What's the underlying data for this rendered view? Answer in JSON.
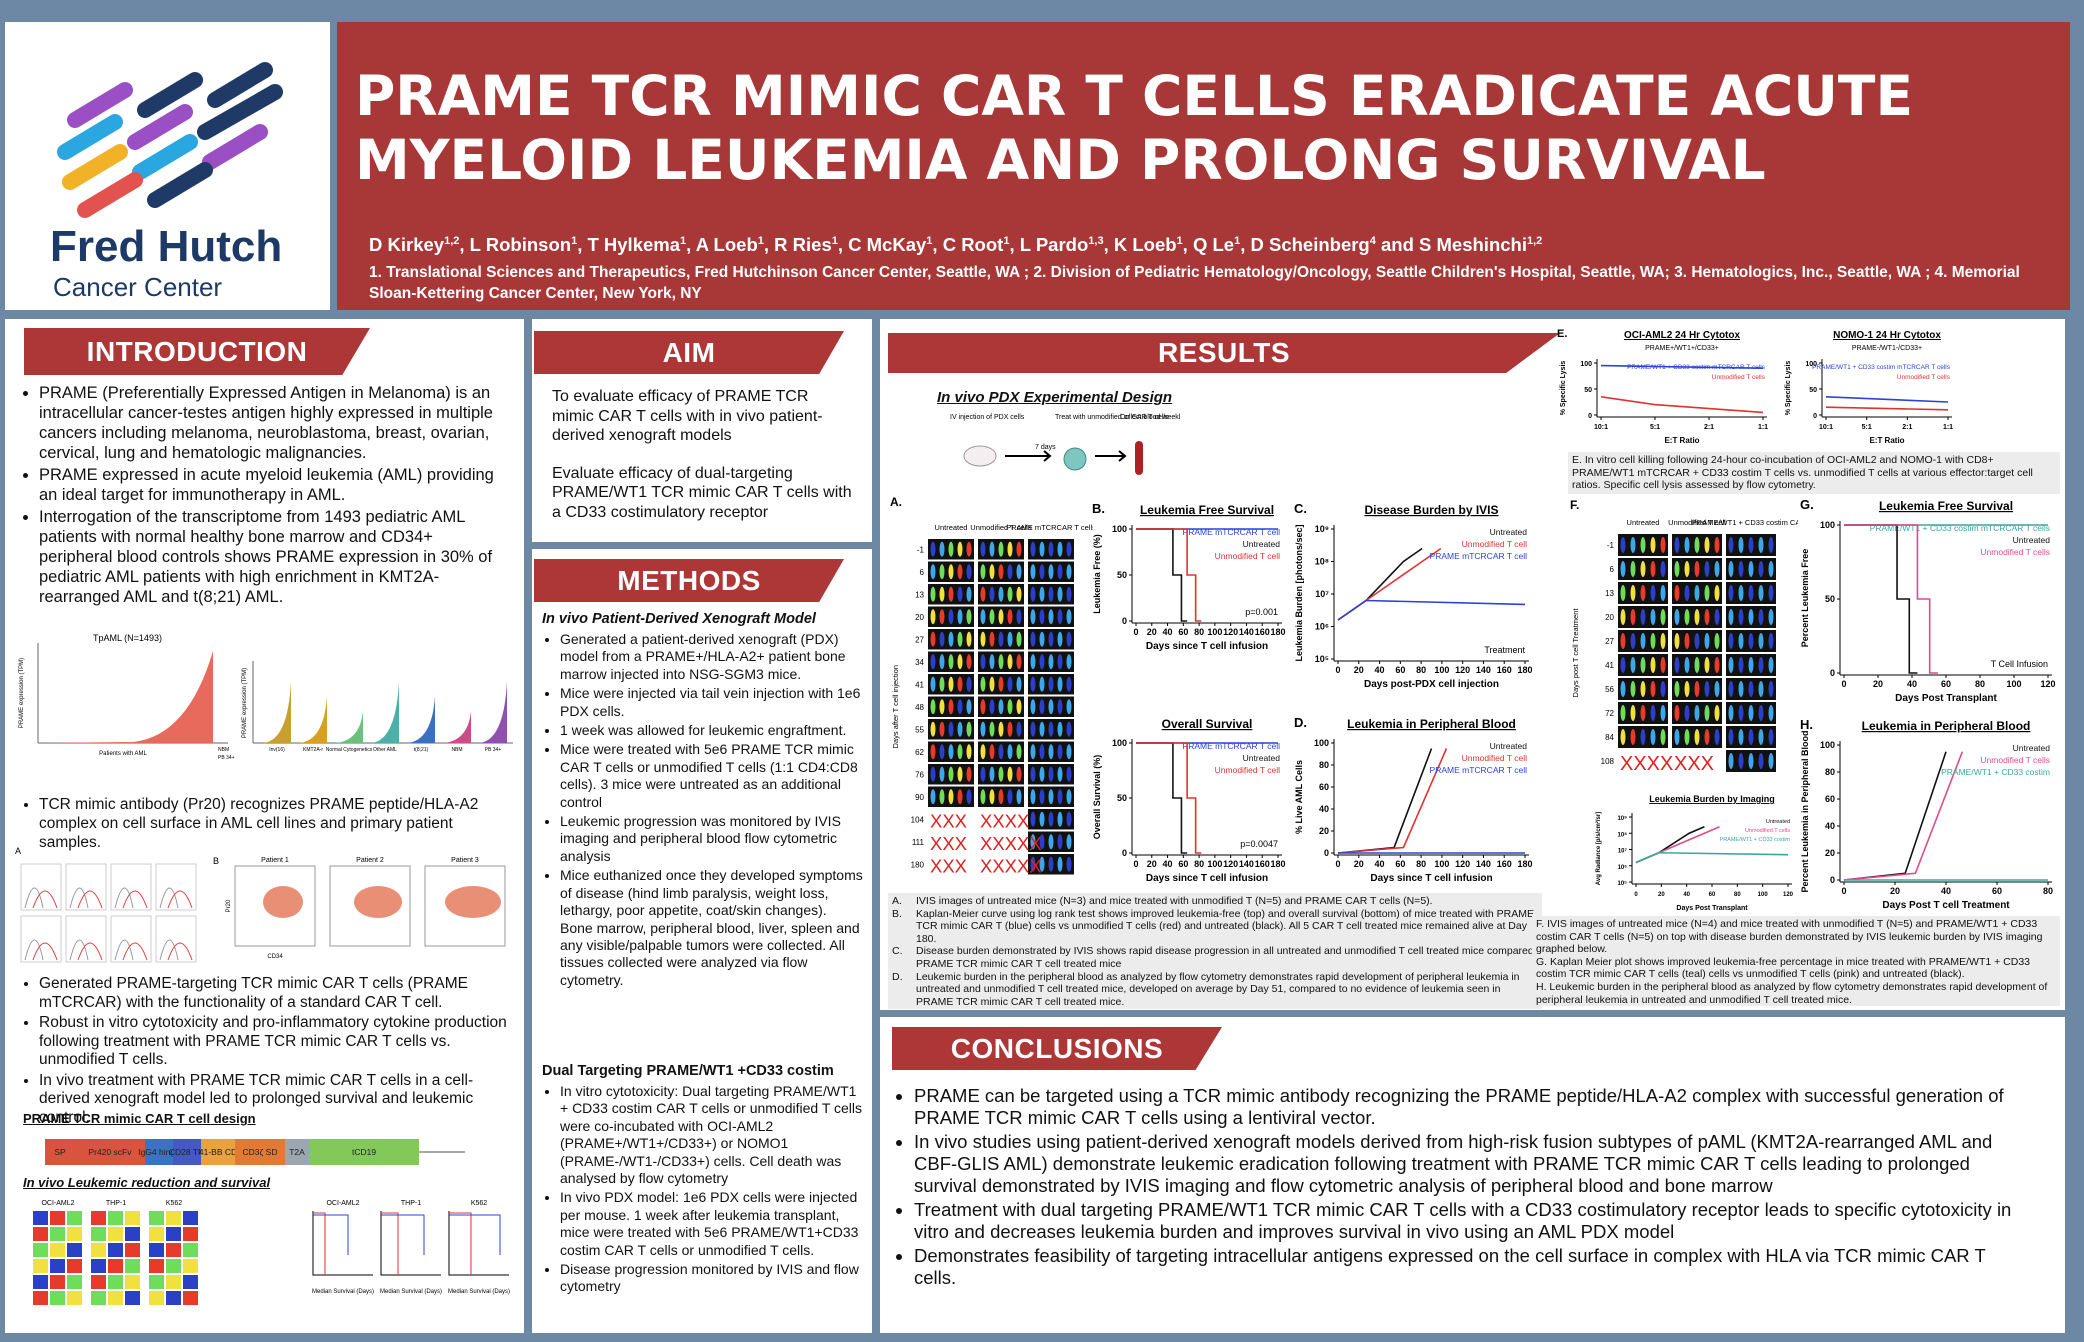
{
  "header": {
    "title": "PRAME TCR MIMIC CAR T CELLS ERADICATE ACUTE MYELOID LEUKEMIA AND PROLONG SURVIVAL",
    "authors": [
      {
        "name": "D Kirkey",
        "aff": "1,2"
      },
      {
        "name": "L Robinson",
        "aff": "1"
      },
      {
        "name": "T Hylkema",
        "aff": "1"
      },
      {
        "name": "A Loeb",
        "aff": "1"
      },
      {
        "name": "R Ries",
        "aff": "1"
      },
      {
        "name": "C McKay",
        "aff": "1"
      },
      {
        "name": "C Root",
        "aff": "1"
      },
      {
        "name": "L Pardo",
        "aff": "1,3"
      },
      {
        "name": "K Loeb",
        "aff": "1"
      },
      {
        "name": "Q Le",
        "aff": "1"
      },
      {
        "name": "D Scheinberg",
        "aff": "4"
      },
      {
        "name": "S Meshinchi",
        "aff": "1,2"
      }
    ],
    "authors_joiner": "and",
    "affiliations": "1. Translational Sciences and Therapeutics, Fred Hutchinson Cancer Center, Seattle, WA ; 2. Division of Pediatric Hematology/Oncology, Seattle Children's Hospital, Seattle, WA; 3. Hematologics, Inc., Seattle, WA ; 4. Memorial Sloan-Kettering Cancer Center, New York, NY",
    "logo": {
      "name": "Fred Hutch",
      "sub": "Cancer Center"
    }
  },
  "introduction": {
    "heading": "INTRODUCTION",
    "bullets": [
      "PRAME (Preferentially Expressed Antigen in Melanoma) is an intracellular cancer-testes antigen highly expressed in multiple cancers including melanoma, neuroblastoma, breast, ovarian, cervical, lung and hematologic malignancies.",
      "PRAME expressed in acute myeloid leukemia (AML) providing an ideal target for immunotherapy in AML.",
      "Interrogation of the transcriptome from 1493 pediatric AML patients with normal healthy bone marrow and CD34+ peripheral blood controls shows PRAME expression in 30% of pediatric AML patients with high enrichment in KMT2A-rearranged AML and t(8;21) AML."
    ],
    "expression_chart": {
      "title": "TpAML (N=1493)",
      "ylabel": "PRAME expression (TPM)",
      "xlabel": "Patients with AML",
      "controls": [
        "NBM",
        "PB 34+"
      ]
    },
    "subtype_chart": {
      "ylabel": "PRAME expression (TPM)",
      "groups": [
        "Inv(16)",
        "KMT2A-r",
        "Normal Cytogenetics",
        "Other AML",
        "t(8;21)",
        "NBM",
        "PB 34+"
      ]
    },
    "bullets2": [
      "TCR mimic antibody (Pr20) recognizes PRAME peptide/HLA-A2 complex on cell surface in AML cell lines and primary patient samples."
    ],
    "flow_figure": {
      "label_a": "A",
      "label_b": "B",
      "patients": [
        "Patient 1",
        "Patient 2",
        "Patient 3"
      ],
      "axis_x": "CD34",
      "axis_y": "Pr20"
    },
    "bullets3": [
      "Generated PRAME-targeting TCR mimic CAR T cells (PRAME mTCRCAR) with the functionality of a standard CAR T cell.",
      "Robust in vitro cytotoxicity and pro-inflammatory cytokine production following treatment with PRAME TCR mimic CAR T cells vs. unmodified T cells.",
      "In vivo treatment with PRAME TCR mimic CAR T cells in a cell-derived xenograft model led to prolonged survival and leukemic control."
    ],
    "design_title": "PRAME TCR mimic CAR T cell design",
    "construct": [
      {
        "label": "SP",
        "color": "#d9543f"
      },
      {
        "label": "Pr420 scFv",
        "color": "#d9543f"
      },
      {
        "label": "IgG4 hinge",
        "color": "#3b73c4"
      },
      {
        "label": "CD28 TM",
        "color": "#4459c2"
      },
      {
        "label": "41-BB CD",
        "color": "#eaa140"
      },
      {
        "label": "CD3ζ SD",
        "color": "#e07a34"
      },
      {
        "label": "T2A",
        "color": "#9aa6b0"
      },
      {
        "label": "tCD19",
        "color": "#83c95a"
      }
    ],
    "survival_title": "In vivo Leukemic reduction and survival",
    "cell_lines": [
      "OCI-AML2",
      "THP-1",
      "K562"
    ],
    "survival_note": "Median Survival (Days)"
  },
  "aim": {
    "heading": "AIM",
    "paragraphs": [
      "To evaluate efficacy of PRAME TCR mimic CAR T cells with in vivo patient-derived xenograft models",
      "Evaluate efficacy of dual-targeting PRAME/WT1 TCR mimic CAR T cells with a CD33 costimulatory receptor"
    ]
  },
  "methods": {
    "heading": "METHODS",
    "sub1": "In vivo Patient-Derived Xenograft Model",
    "bullets1": [
      "Generated a patient-derived xenograft (PDX) model from a PRAME+/HLA-A2+ patient bone marrow injected into NSG-SGM3 mice.",
      "Mice were injected via tail vein injection with 1e6 PDX cells.",
      "1 week was allowed for leukemic engraftment.",
      "Mice were treated with 5e6 PRAME TCR mimic CAR T cells or unmodified T cells (1:1 CD4:CD8 cells). 3 mice were untreated as an additional control",
      "Leukemic progression was monitored by IVIS imaging and peripheral blood flow cytometric analysis",
      "Mice euthanized once they developed symptoms of disease (hind limb paralysis, weight loss, lethargy, poor appetite, coat/skin changes). Bone marrow, peripheral blood, liver, spleen and any visible/palpable tumors were collected. All tissues collected were analyzed via flow cytometry."
    ],
    "sub2": "Dual Targeting PRAME/WT1 +CD33 costim",
    "bullets2": [
      "In vitro cytotoxicity: Dual targeting PRAME/WT1 + CD33 costim CAR T cells or unmodified T cells were co-incubated with OCI-AML2 (PRAME+/WT1+/CD33+) or NOMO1 (PRAME-/WT1-/CD33+) cells. Cell death was analysed by flow cytometry",
      "In vivo PDX model: 1e6 PDX cells were injected per mouse. 1 week after leukemia transplant, mice were treated with 5e6 PRAME/WT1+CD33 costim CAR T cells or unmodified T cells.",
      "Disease progression monitored by IVIS and flow cytometry"
    ]
  },
  "results": {
    "heading": "RESULTS",
    "design_title": "In vivo PDX Experimental Design",
    "design_steps": [
      "IV injection of PDX cells",
      "7 days",
      "Treat with unmodified or CAR T cells",
      "Collect blood weekly for flow cytometry"
    ],
    "ivis_a": {
      "label": "A.",
      "ylabel": "Days after T cell injection",
      "columns": [
        "Untreated",
        "Unmodified T cells",
        "PRAME mTCRCAR T cells"
      ],
      "rows": [
        {
          "day": "-1"
        },
        {
          "day": "6"
        },
        {
          "day": "13"
        },
        {
          "day": "20"
        },
        {
          "day": "27"
        },
        {
          "day": "34"
        },
        {
          "day": "41"
        },
        {
          "day": "48"
        },
        {
          "day": "55"
        },
        {
          "day": "62"
        },
        {
          "day": "76"
        },
        {
          "day": "90"
        },
        {
          "day": "104",
          "marks": [
            "XXX",
            "XXXX"
          ]
        },
        {
          "day": "111",
          "marks": [
            "XXX",
            "XXXXX"
          ]
        },
        {
          "day": "180",
          "marks": [
            "XXX",
            "XXXXX"
          ]
        }
      ]
    },
    "charts": {
      "b": {
        "label": "B.",
        "title": "Leukemia Free Survival",
        "kind": "survival",
        "xlabel": "Days since T cell infusion",
        "ylabel": "Leukemia Free (%)",
        "xticks": [
          "0",
          "20",
          "40",
          "60",
          "80",
          "100",
          "120",
          "140",
          "160",
          "180"
        ],
        "yticks": [
          "0",
          "50",
          "100"
        ],
        "legend": [
          {
            "text": "PRAME mTCRCAR T cell",
            "color": "#2a43d8"
          },
          {
            "text": "Untreated",
            "color": "#111111"
          },
          {
            "text": "Unmodified T cell",
            "color": "#e03232"
          }
        ],
        "note": "p=0.001"
      },
      "os": {
        "label": "",
        "title": "Overall Survival",
        "kind": "survival",
        "xlabel": "Days since T cell infusion",
        "ylabel": "Overall Survival (%)",
        "xticks": [
          "0",
          "20",
          "40",
          "60",
          "80",
          "100",
          "120",
          "140",
          "160",
          "180"
        ],
        "yticks": [
          "0",
          "50",
          "100"
        ],
        "legend": [
          {
            "text": "PRAME mTCRCAR T cell",
            "color": "#2a43d8"
          },
          {
            "text": "Untreated",
            "color": "#111111"
          },
          {
            "text": "Unmodified T cell",
            "color": "#e03232"
          }
        ],
        "note": "p=0.0047"
      },
      "c": {
        "label": "C.",
        "title": "Disease Burden by IVIS",
        "kind": "growth",
        "xlabel": "Days post-PDX cell injection",
        "ylabel": "Leukemia Burden [photons/sec]",
        "xticks": [
          "0",
          "20",
          "40",
          "60",
          "80",
          "100",
          "120",
          "140",
          "160",
          "180"
        ],
        "yticks": [
          "10⁵",
          "10⁶",
          "10⁷",
          "10⁸",
          "10⁹"
        ],
        "legend": [
          {
            "text": "Untreated",
            "color": "#111111"
          },
          {
            "text": "Unmodified T cell",
            "color": "#e03232"
          },
          {
            "text": "PRAME mTCRCAR T cell",
            "color": "#2a43d8"
          }
        ],
        "note": "Treatment"
      },
      "d": {
        "label": "D.",
        "title": "Leukemia in Peripheral Blood",
        "kind": "rise",
        "xlabel": "Days since T cell infusion",
        "ylabel": "% Live AML Cells",
        "xticks": [
          "0",
          "20",
          "40",
          "60",
          "80",
          "100",
          "120",
          "140",
          "160",
          "180"
        ],
        "yticks": [
          "0",
          "20",
          "40",
          "60",
          "80",
          "100"
        ],
        "legend": [
          {
            "text": "Untreated",
            "color": "#111111"
          },
          {
            "text": "Unmodified T cell",
            "color": "#e03232"
          },
          {
            "text": "PRAME mTCRCAR T cell",
            "color": "#2a43d8"
          }
        ]
      },
      "e1": {
        "label": "E.",
        "title": "OCI-AML2 24 Hr Cytotox",
        "subtitle": "PRAME+/WT1+/CD33+",
        "kind": "lysis",
        "xlabel": "E:T Ratio",
        "ylabel": "% Specific Lysis",
        "xticks": [
          "10:1",
          "5:1",
          "2:1",
          "1:1"
        ],
        "yticks": [
          "0",
          "50",
          "100"
        ],
        "legend": [
          {
            "text": "PRAME/WT1 + CD33 costim mTCRCAR T cells",
            "color": "#2a43d8"
          },
          {
            "text": "Unmodified T cells",
            "color": "#e03232"
          }
        ]
      },
      "e2": {
        "label": "",
        "title": "NOMO-1 24 Hr Cytotox",
        "subtitle": "PRAME-/WT1-/CD33+",
        "kind": "lysis2",
        "xlabel": "E:T Ratio",
        "ylabel": "% Specific Lysis",
        "xticks": [
          "10:1",
          "5:1",
          "2:1",
          "1:1"
        ],
        "yticks": [
          "0",
          "50",
          "100"
        ],
        "legend": [
          {
            "text": "PRAME/WT1 + CD33 costim mTCRCAR T cells",
            "color": "#2a43d8"
          },
          {
            "text": "Unmodified T cells",
            "color": "#e03232"
          }
        ]
      },
      "g": {
        "label": "G.",
        "title": "Leukemia Free Survival",
        "kind": "survival",
        "xlabel": "Days Post Transplant",
        "ylabel": "Percent Leukemia Free",
        "xticks": [
          "0",
          "20",
          "40",
          "60",
          "80",
          "100",
          "120"
        ],
        "yticks": [
          "0",
          "50",
          "100"
        ],
        "legend": [
          {
            "text": "PRAME/WT1 + CD33 costim mTCRCAR T cells",
            "color": "#3aa8a0"
          },
          {
            "text": "Untreated",
            "color": "#111111"
          },
          {
            "text": "Unmodified T cells",
            "color": "#e04a8a"
          }
        ],
        "note": "T Cell Infusion"
      },
      "burden": {
        "label": "",
        "title": "Leukemia Burden by Imaging",
        "kind": "growth",
        "xlabel": "Days Post Transplant",
        "ylabel": "Avg Radiance [p/s/cm²/sr]",
        "xticks": [
          "0",
          "20",
          "40",
          "60",
          "80",
          "100",
          "120"
        ],
        "yticks": [
          "10⁵",
          "10⁶",
          "10⁷",
          "10⁸",
          "10⁹"
        ],
        "legend": [
          {
            "text": "Untreated",
            "color": "#111111"
          },
          {
            "text": "Unmodified T cells",
            "color": "#e04a8a"
          },
          {
            "text": "PRAME/WT1 + CD33 costim",
            "color": "#3aa8a0"
          }
        ]
      },
      "h": {
        "label": "H.",
        "title": "Leukemia in Peripheral Blood",
        "kind": "rise",
        "xlabel": "Days Post T cell Treatment",
        "ylabel": "Percent Leukemia in Peripheral Blood",
        "xticks": [
          "0",
          "20",
          "40",
          "60",
          "80"
        ],
        "yticks": [
          "0",
          "20",
          "40",
          "60",
          "80",
          "100"
        ],
        "legend": [
          {
            "text": "Untreated",
            "color": "#111111"
          },
          {
            "text": "Unmodified T cells",
            "color": "#e04a8a"
          },
          {
            "text": "PRAME/WT1 + CD33 costim",
            "color": "#3aa8a0"
          }
        ]
      }
    },
    "ivis_f": {
      "label": "F.",
      "ylabel": "Days post T cell Treatment",
      "columns": [
        "Untreated",
        "Unmodified T cell",
        "PRAME/WT1 + CD33 costim CART"
      ],
      "rows": [
        {
          "day": "-1"
        },
        {
          "day": "6"
        },
        {
          "day": "13"
        },
        {
          "day": "20"
        },
        {
          "day": "27"
        },
        {
          "day": "41"
        },
        {
          "day": "56"
        },
        {
          "day": "72"
        },
        {
          "day": "84"
        },
        {
          "day": "108",
          "marks": [
            "XXXX",
            "XXX"
          ]
        }
      ]
    },
    "caption_e": "E. In vitro cell killing following 24-hour co-incubation of OCI-AML2 and NOMO-1 with CD8+ PRAME/WT1 mTCRCAR + CD33 costim T cells vs. unmodified T cells at various effector:target cell ratios. Specific cell lysis assessed by flow cytometry.",
    "captions_left": [
      {
        "letter": "A.",
        "text": "IVIS images of untreated mice (N=3) and mice treated with unmodified T (N=5) and PRAME CAR T cells (N=5)."
      },
      {
        "letter": "B.",
        "text": "Kaplan-Meier curve using log rank test shows improved leukemia-free (top) and overall survival (bottom) of mice treated with PRAME TCR mimic CAR T (blue) cells vs unmodified T cells (red) and untreated (black). All 5 CAR T cell treated mice remained alive at Day 180."
      },
      {
        "letter": "C.",
        "text": "Disease burden demonstrated by IVIS shows rapid disease progression in all untreated and unmodified T cell treated mice compared PRAME TCR mimic CAR T cell treated mice"
      },
      {
        "letter": "D.",
        "text": "Leukemic burden in the peripheral blood as analyzed by flow cytometry demonstrates rapid development of peripheral leukemia in untreated and unmodified T cell treated mice, developed on average by Day 51, compared to no evidence of leukemia seen in PRAME TCR mimic CAR T cell treated mice."
      }
    ],
    "captions_right": [
      "F. IVIS images of untreated mice (N=4) and mice treated with unmodified T (N=5) and PRAME/WT1 + CD33 costim CAR T cells (N=5) on top with disease burden demonstrated by IVIS leukemic burden by IVIS imaging graphed below.",
      "G. Kaplan Meier plot shows improved leukemia-free percentage in mice treated with PRAME/WT1 + CD33 costim TCR mimic CAR T cells (teal) cells vs unmodified T cells (pink) and untreated (black).",
      "H. Leukemic burden in the peripheral blood as analyzed by flow cytometry demonstrates rapid development of peripheral leukemia in untreated and unmodified T cell treated mice."
    ]
  },
  "conclusions": {
    "heading": "CONCLUSIONS",
    "bullets": [
      "PRAME can be targeted using a TCR mimic antibody recognizing the PRAME peptide/HLA-A2 complex with successful generation of PRAME TCR mimic CAR T cells using a lentiviral vector.",
      "In vivo studies using patient-derived xenograft models derived from high-risk fusion subtypes of pAML (KMT2A-rearranged AML and CBF-GLIS AML) demonstrate leukemic eradication following treatment with PRAME TCR mimic CAR T cells leading to prolonged survival demonstrated by IVIS imaging and flow cytometric analysis of peripheral blood and bone marrow",
      "Treatment with dual targeting PRAME/WT1 TCR mimic CAR T cells with a CD33 costimulatory receptor leads to specific cytotoxicity in vitro and decreases leukemia burden and improves survival in vivo using an AML PDX model",
      "Demonstrates feasibility of targeting intracellular antigens expressed on the cell surface in complex with HLA via TCR mimic CAR T cells."
    ]
  }
}
